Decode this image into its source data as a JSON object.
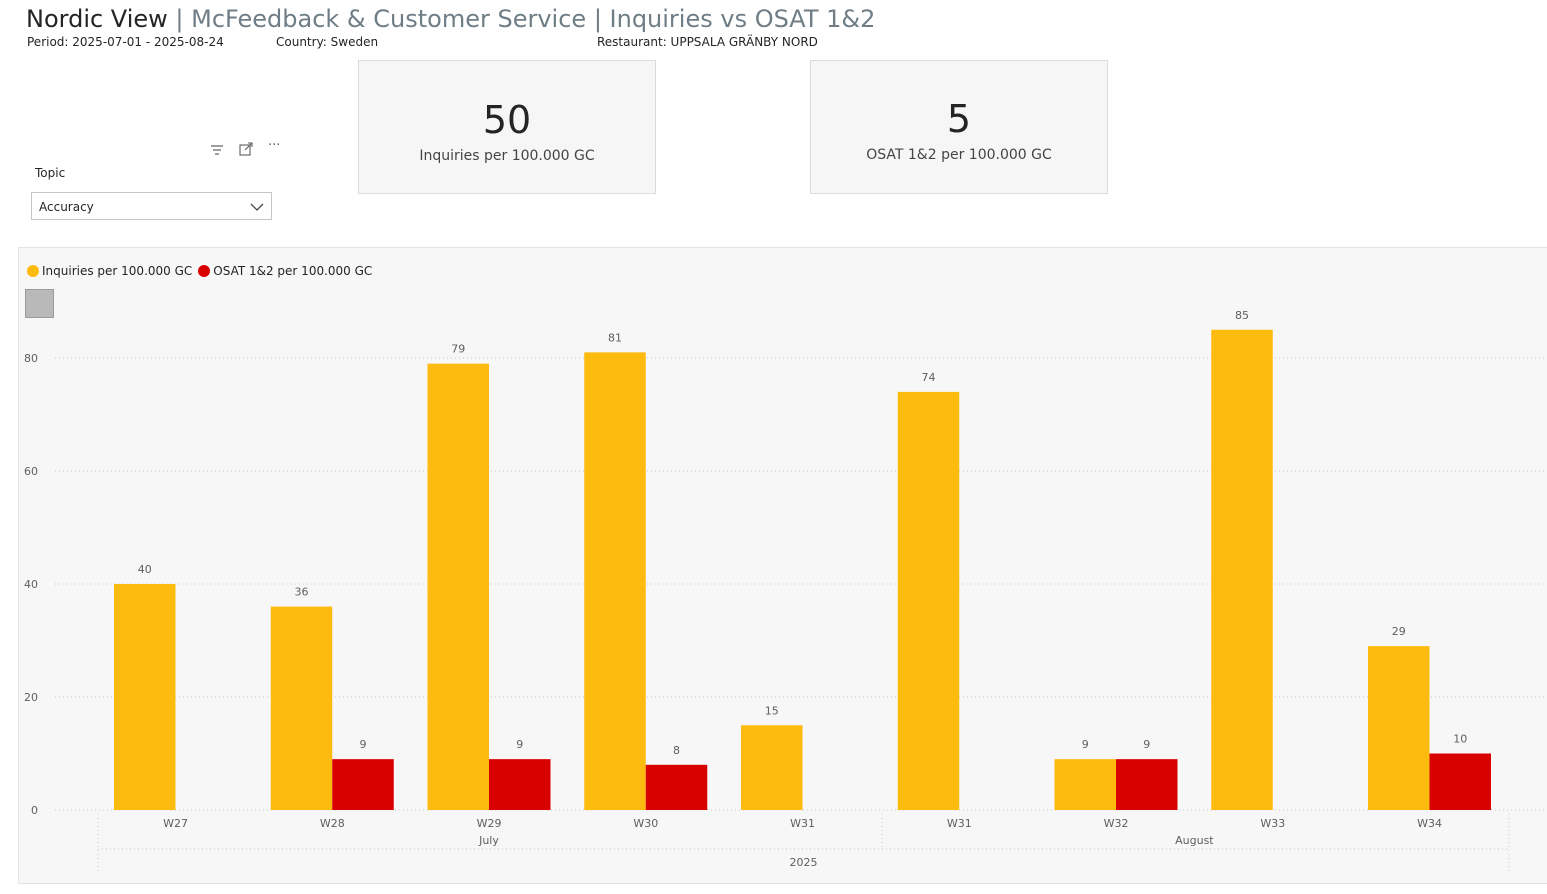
{
  "header": {
    "title_main": "Nordic View",
    "title_sub": " | McFeedback & Customer Service | Inquiries vs OSAT 1&2",
    "period": "Period: 2025-07-01 - 2025-08-24",
    "country": "Country: Sweden",
    "restaurant": "Restaurant: UPPSALA GRÄNBY NORD"
  },
  "slicer": {
    "label": "Topic",
    "value": "Accuracy",
    "icons": [
      "filter-icon",
      "focus-mode-icon",
      "more-options-icon"
    ],
    "more_glyph": "···"
  },
  "kpis": [
    {
      "value": "50",
      "label": "Inquiries per 100.000 GC"
    },
    {
      "value": "5",
      "label": "OSAT 1&2 per 100.000 GC"
    }
  ],
  "colors": {
    "inquiries": "#FDBB0F",
    "osat": "#D90000",
    "grid": "#c8c8c8",
    "axis_text": "#605e5c"
  },
  "chart_data": {
    "type": "bar",
    "legend": {
      "position": "top-left",
      "items": [
        "Inquiries per 100.000 GC",
        "OSAT 1&2 per 100.000 GC"
      ]
    },
    "categories": [
      "W27",
      "W28",
      "W29",
      "W30",
      "W31",
      "W31",
      "W32",
      "W33",
      "W34"
    ],
    "months": [
      {
        "label": "July",
        "span": [
          0,
          4
        ]
      },
      {
        "label": "August",
        "span": [
          5,
          8
        ]
      }
    ],
    "year": "2025",
    "series": [
      {
        "name": "Inquiries per 100.000 GC",
        "values": [
          40,
          36,
          79,
          81,
          15,
          74,
          9,
          85,
          29
        ]
      },
      {
        "name": "OSAT 1&2 per 100.000 GC",
        "values": [
          null,
          9,
          9,
          8,
          null,
          null,
          9,
          null,
          10
        ]
      }
    ],
    "ylim": [
      0,
      90
    ],
    "yticks": [
      0,
      20,
      40,
      60,
      80
    ],
    "grid": true
  }
}
